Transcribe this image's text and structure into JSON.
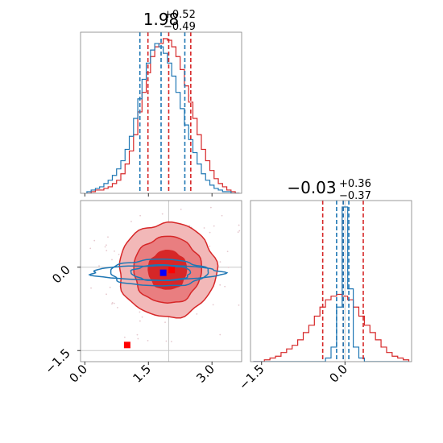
{
  "colors": {
    "red": "#d62728",
    "blue": "#1f77b4",
    "red_fill_light": "#f2b8b8",
    "red_fill_mid": "#e97e80",
    "red_fill_dark": "#d62728",
    "marker_red": "#ff0000",
    "marker_blue": "#0000ff",
    "truth_line": "#c8c8c8",
    "frame": "#808080"
  },
  "chart_data": {
    "type": "corner",
    "parameters": [
      "param_0",
      "param_1"
    ],
    "titles": [
      {
        "main": "1.98",
        "sup": "+0.52",
        "sub": "−0.49"
      },
      {
        "main": "−0.03",
        "sup": "+0.36",
        "sub": "−0.37"
      }
    ],
    "ranges": [
      [
        -0.1,
        3.7
      ],
      [
        -1.7,
        1.2
      ]
    ],
    "ticks": {
      "param_0": {
        "values": [
          0.0,
          1.5,
          3.0
        ],
        "labels": [
          "0.0",
          "1.5",
          "3.0"
        ]
      },
      "param_1": {
        "values": [
          0.0,
          -1.5
        ],
        "labels": [
          "0.0",
          "−1.5"
        ]
      }
    },
    "histograms": [
      {
        "param": "param_0",
        "bins_x": [
          0.1,
          0.2,
          0.3,
          0.4,
          0.5,
          0.6,
          0.7,
          0.8,
          0.9,
          1.0,
          1.1,
          1.2,
          1.3,
          1.4,
          1.5,
          1.6,
          1.7,
          1.8,
          1.9,
          2.0,
          2.1,
          2.2,
          2.3,
          2.4,
          2.5,
          2.6,
          2.7,
          2.8,
          2.9,
          3.0,
          3.1,
          3.2,
          3.3,
          3.4,
          3.5,
          3.6
        ],
        "series": [
          {
            "color": "red",
            "counts": [
              0,
              1,
              2,
              2,
              3,
              4,
              6,
              8,
              12,
              18,
              26,
              36,
              50,
              62,
              74,
              84,
              90,
              92,
              95,
              94,
              90,
              84,
              76,
              66,
              56,
              46,
              36,
              27,
              20,
              14,
              9,
              6,
              4,
              2,
              1,
              0
            ]
          },
          {
            "color": "blue",
            "counts": [
              1,
              2,
              3,
              4,
              6,
              8,
              11,
              15,
              20,
              27,
              35,
              46,
              58,
              70,
              80,
              88,
              92,
              90,
              86,
              80,
              72,
              62,
              52,
              42,
              33,
              25,
              18,
              12,
              8,
              5,
              3,
              2,
              1,
              1,
              0,
              0
            ]
          }
        ],
        "quantiles": [
          {
            "color": "red",
            "values": [
              1.49,
              1.98,
              2.5
            ]
          },
          {
            "color": "blue",
            "values": [
              1.3,
              1.8,
              2.36
            ]
          }
        ]
      },
      {
        "param": "param_1",
        "bins_x": [
          -1.6,
          -1.5,
          -1.4,
          -1.3,
          -1.2,
          -1.1,
          -1.0,
          -0.9,
          -0.8,
          -0.7,
          -0.6,
          -0.5,
          -0.4,
          -0.3,
          -0.2,
          -0.1,
          0.0,
          0.1,
          0.2,
          0.3,
          0.4,
          0.5,
          0.6,
          0.7,
          0.8,
          0.9,
          1.0,
          1.1
        ],
        "series": [
          {
            "color": "red",
            "counts": [
              0,
              0,
              1,
              2,
              3,
              5,
              7,
              9,
              12,
              16,
              20,
              25,
              30,
              34,
              36,
              37,
              36,
              34,
              30,
              25,
              20,
              16,
              12,
              8,
              5,
              3,
              2,
              1
            ]
          },
          {
            "color": "blue",
            "counts": [
              0,
              0,
              0,
              0,
              0,
              0,
              0,
              0,
              0,
              0,
              0,
              0,
              0,
              2,
              8,
              30,
              85,
              40,
              8,
              2,
              0,
              0,
              0,
              0,
              0,
              0,
              0,
              0
            ]
          }
        ],
        "quantiles": [
          {
            "color": "red",
            "values": [
              -0.4,
              -0.03,
              0.33
            ]
          },
          {
            "color": "blue",
            "values": [
              -0.15,
              -0.03,
              0.07
            ]
          }
        ]
      }
    ],
    "joint": {
      "x_param": "param_0",
      "y_param": "param_1",
      "red_filled_levels": [
        {
          "center": [
            1.95,
            -0.05
          ],
          "rx": 1.15,
          "ry": 0.85
        },
        {
          "center": [
            1.95,
            -0.05
          ],
          "rx": 0.8,
          "ry": 0.6
        },
        {
          "center": [
            1.95,
            -0.05
          ],
          "rx": 0.45,
          "ry": 0.35
        }
      ],
      "blue_levels": [
        {
          "center": [
            1.7,
            -0.1
          ],
          "rx": 1.55,
          "ry": 0.13
        },
        {
          "center": [
            1.75,
            -0.1
          ],
          "rx": 1.15,
          "ry": 0.24
        },
        {
          "center": [
            1.8,
            -0.1
          ],
          "rx": 0.7,
          "ry": 0.14
        }
      ],
      "truth": {
        "x": 1.98,
        "y": 0.0
      },
      "markers": [
        {
          "x": 1.0,
          "y": -1.4,
          "color": "marker_red"
        },
        {
          "x": 2.05,
          "y": -0.05,
          "color": "marker_red"
        },
        {
          "x": 1.85,
          "y": -0.1,
          "color": "marker_blue"
        }
      ]
    }
  }
}
